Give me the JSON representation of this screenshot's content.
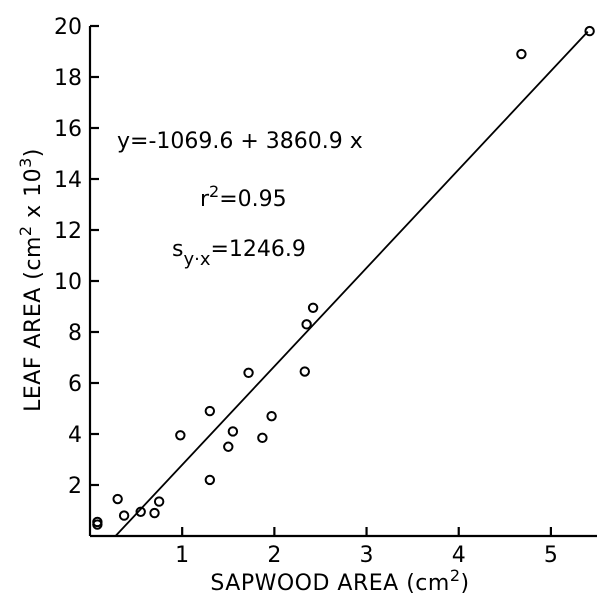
{
  "chart_data": {
    "type": "scatter",
    "xlabel_main": "SAPWOOD  AREA (cm",
    "xlabel_sup": "2",
    "xlabel_end": ")",
    "ylabel_main": "LEAF  AREA (cm",
    "ylabel_sup1": "2",
    "ylabel_mid": " x 10",
    "ylabel_sup2": "3",
    "ylabel_end": ")",
    "xlim": [
      0,
      5.5
    ],
    "ylim": [
      0,
      20
    ],
    "x_ticks": [
      1,
      2,
      3,
      4,
      5
    ],
    "y_ticks": [
      2,
      4,
      6,
      8,
      10,
      12,
      14,
      16,
      18,
      20
    ],
    "points": [
      {
        "x": 0.08,
        "y": 0.55
      },
      {
        "x": 0.08,
        "y": 0.45
      },
      {
        "x": 0.3,
        "y": 1.45
      },
      {
        "x": 0.37,
        "y": 0.8
      },
      {
        "x": 0.55,
        "y": 0.95
      },
      {
        "x": 0.7,
        "y": 0.9
      },
      {
        "x": 0.75,
        "y": 1.35
      },
      {
        "x": 0.98,
        "y": 3.95
      },
      {
        "x": 1.3,
        "y": 2.2
      },
      {
        "x": 1.3,
        "y": 4.9
      },
      {
        "x": 1.5,
        "y": 3.5
      },
      {
        "x": 1.55,
        "y": 4.1
      },
      {
        "x": 1.72,
        "y": 6.4
      },
      {
        "x": 1.87,
        "y": 3.85
      },
      {
        "x": 1.97,
        "y": 4.7
      },
      {
        "x": 2.33,
        "y": 6.45
      },
      {
        "x": 2.35,
        "y": 8.3
      },
      {
        "x": 2.42,
        "y": 8.95
      },
      {
        "x": 4.68,
        "y": 18.9
      },
      {
        "x": 5.42,
        "y": 19.8
      }
    ],
    "fit": {
      "intercept": -1069.6,
      "slope": 3860.9,
      "x_range": [
        0.277,
        5.4
      ],
      "y_scale": 0.001
    },
    "annotations": {
      "equation": "y=-1069.6 + 3860.9 x",
      "r2_prefix": "r",
      "r2_sup": "2",
      "r2_value": "=0.95",
      "s_prefix": "s",
      "s_sub": "y·x",
      "s_value": "=1246.9"
    }
  }
}
